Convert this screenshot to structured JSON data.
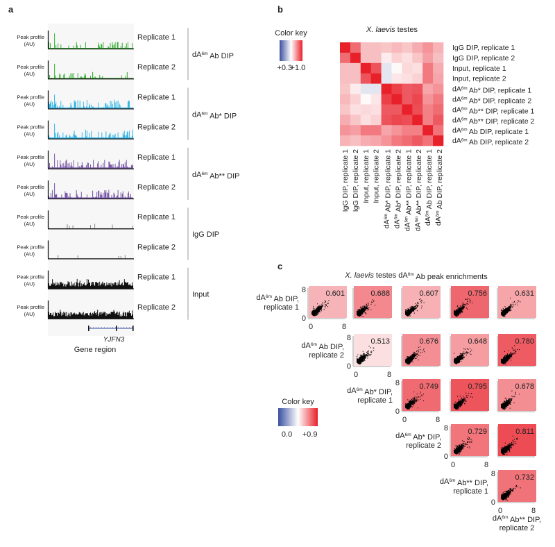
{
  "panel_labels": {
    "a": "a",
    "b": "b",
    "c": "c"
  },
  "chart_data": [
    {
      "type": "track",
      "panel": "a",
      "ylabel_line1": "Peak profile",
      "ylabel_line2": "(AU)",
      "xlabel": "Gene region",
      "gene": "YJFN3",
      "groups": [
        {
          "pre": "dA",
          "sup": "6m",
          "post": " Ab DIP",
          "color": "#3cb23a",
          "tracks": [
            "Replicate 1",
            "Replicate 2"
          ],
          "signal": "sparse-peaks"
        },
        {
          "pre": "dA",
          "sup": "6m",
          "post": " Ab* DIP",
          "color": "#35b6e8",
          "tracks": [
            "Replicate 1",
            "Replicate 2"
          ],
          "signal": "dense-peaks"
        },
        {
          "pre": "dA",
          "sup": "6m",
          "post": " Ab** DIP",
          "color": "#7a5aa8",
          "tracks": [
            "Replicate 1",
            "Replicate 2"
          ],
          "signal": "dense-peaks"
        },
        {
          "pre": "IgG DIP",
          "sup": "",
          "post": "",
          "color": "#888888",
          "tracks": [
            "Replicate 1",
            "Replicate 2"
          ],
          "signal": "near-flat"
        },
        {
          "pre": "Input",
          "sup": "",
          "post": "",
          "color": "#111111",
          "tracks": [
            "Replicate 1",
            "Replicate 2"
          ],
          "signal": "broad"
        }
      ]
    },
    {
      "type": "heatmap",
      "panel": "b",
      "title_italic": "X. laevis",
      "title_rest": " testes",
      "color_key": {
        "title": "Color key",
        "min_label": "+0.3",
        "max_label": "+1.0",
        "min": 0.3,
        "max": 1.0,
        "low_color": "#3a4fa0",
        "mid_color": "#ffffff",
        "high_color": "#e8202a"
      },
      "labels": [
        {
          "pre": "IgG DIP, replicate 1",
          "sup": "",
          "post": ""
        },
        {
          "pre": "IgG DIP, replicate 2",
          "sup": "",
          "post": ""
        },
        {
          "pre": "Input, replicate 1",
          "sup": "",
          "post": ""
        },
        {
          "pre": "Input, replicate 2",
          "sup": "",
          "post": ""
        },
        {
          "pre": "dA",
          "sup": "6m",
          "post": " Ab* DIP, replicate 1"
        },
        {
          "pre": "dA",
          "sup": "6m",
          "post": " Ab* DIP, replicate 2"
        },
        {
          "pre": "dA",
          "sup": "6m",
          "post": " Ab** DIP, replicate 1"
        },
        {
          "pre": "dA",
          "sup": "6m",
          "post": " Ab** DIP, replicate 2"
        },
        {
          "pre": "dA",
          "sup": "6m",
          "post": " Ab DIP, replicate 1"
        },
        {
          "pre": "dA",
          "sup": "6m",
          "post": " Ab DIP, replicate 2"
        }
      ],
      "values": [
        [
          1.0,
          0.88,
          0.75,
          0.75,
          0.74,
          0.76,
          0.74,
          0.78,
          0.82,
          0.77
        ],
        [
          0.88,
          1.0,
          0.75,
          0.75,
          0.68,
          0.72,
          0.7,
          0.74,
          0.8,
          0.75
        ],
        [
          0.75,
          0.75,
          1.0,
          0.92,
          0.6,
          0.66,
          0.71,
          0.7,
          0.86,
          0.78
        ],
        [
          0.75,
          0.75,
          0.92,
          1.0,
          0.6,
          0.69,
          0.7,
          0.72,
          0.86,
          0.79
        ],
        [
          0.74,
          0.68,
          0.6,
          0.6,
          1.0,
          0.95,
          0.91,
          0.92,
          0.79,
          0.82
        ],
        [
          0.76,
          0.72,
          0.66,
          0.69,
          0.95,
          1.0,
          0.91,
          0.94,
          0.82,
          0.86
        ],
        [
          0.74,
          0.7,
          0.71,
          0.7,
          0.91,
          0.91,
          1.0,
          0.93,
          0.85,
          0.88
        ],
        [
          0.78,
          0.74,
          0.7,
          0.72,
          0.92,
          0.94,
          0.93,
          1.0,
          0.85,
          0.91
        ],
        [
          0.82,
          0.8,
          0.86,
          0.86,
          0.79,
          0.82,
          0.85,
          0.85,
          1.0,
          0.87
        ],
        [
          0.77,
          0.75,
          0.78,
          0.79,
          0.82,
          0.86,
          0.88,
          0.91,
          0.87,
          1.0
        ]
      ]
    },
    {
      "type": "scatter",
      "panel": "c",
      "title_italic": "X. laevis",
      "title_rest": " testes dA",
      "title_sup": "6m",
      "title_end": " Ab peak enrichments",
      "axis_ticks": [
        "0",
        "8"
      ],
      "xlim": [
        0,
        8
      ],
      "ylim": [
        0,
        8
      ],
      "color_key": {
        "title": "Color key",
        "min_label": "0.0",
        "max_label": "+0.9",
        "min": 0.0,
        "max": 0.9,
        "low_color": "#3a4fa0",
        "mid_color": "#ffffff",
        "high_color": "#e8202a"
      },
      "row_labels": [
        {
          "pre": "dA",
          "sup": "6m",
          "post": " Ab DIP,",
          "line2": "replicate 1"
        },
        {
          "pre": "dA",
          "sup": "6m",
          "post": " Ab DIP,",
          "line2": "replicate 2"
        },
        {
          "pre": "dA",
          "sup": "6m",
          "post": " Ab* DIP,",
          "line2": "replicate 1"
        },
        {
          "pre": "dA",
          "sup": "6m",
          "post": " Ab* DIP,",
          "line2": "replicate 2"
        },
        {
          "pre": "dA",
          "sup": "6m",
          "post": " Ab** DIP,",
          "line2": "replicate 1"
        }
      ],
      "bottom_label": {
        "pre": "dA",
        "sup": "6m",
        "post": " Ab** DIP,",
        "line2": "replicate 2"
      },
      "correlations": [
        [
          "0.601",
          "0.688",
          "0.607",
          "0.756",
          "0.631"
        ],
        [
          "0.513",
          "0.676",
          "0.648",
          "0.780"
        ],
        [
          "0.749",
          "0.795",
          "0.678"
        ],
        [
          "0.729",
          "0.811"
        ],
        [
          "0.732"
        ]
      ]
    }
  ]
}
